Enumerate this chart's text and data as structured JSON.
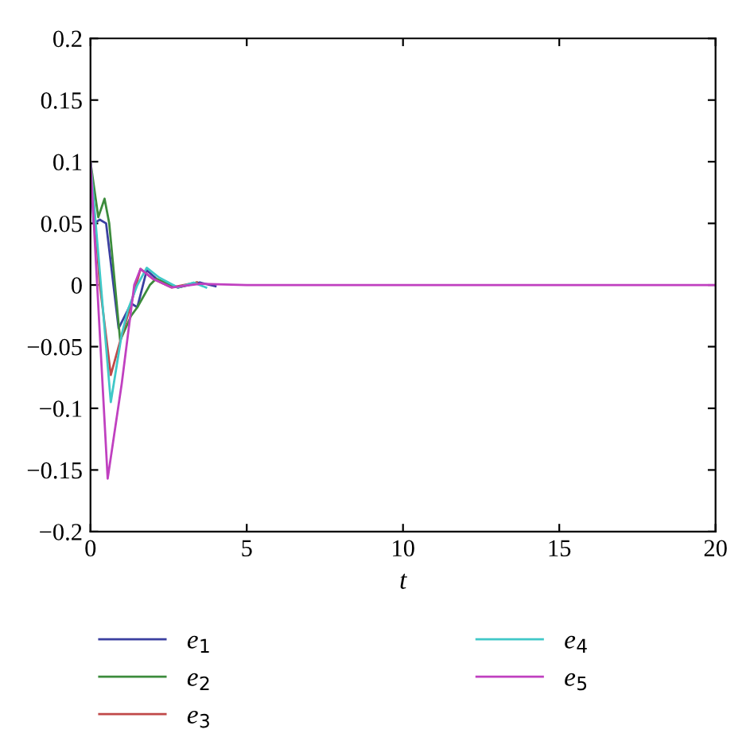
{
  "chart_data": {
    "type": "line",
    "xlabel": "t",
    "xlim": [
      0,
      20
    ],
    "ylim": [
      -0.2,
      0.2
    ],
    "xticks": [
      0,
      5,
      10,
      15,
      20
    ],
    "yticks": [
      {
        "value": -0.2,
        "label": "−0.2"
      },
      {
        "value": -0.15,
        "label": "−0.15"
      },
      {
        "value": -0.1,
        "label": "−0.1"
      },
      {
        "value": -0.05,
        "label": "−0.05"
      },
      0,
      0.05,
      0.1,
      0.15,
      0.2
    ],
    "grid": false,
    "legend": "bottom",
    "marker": "none",
    "line_style": "solid",
    "series": [
      {
        "name": "e$_{1}$",
        "color": "#3a3fa0",
        "x": [
          0,
          0.1,
          0.3,
          0.5,
          0.9,
          1.3,
          1.5,
          1.8,
          2.2,
          2.8,
          3.5,
          4
        ],
        "values": [
          0.1,
          0.05,
          0.053,
          0.05,
          -0.035,
          -0.015,
          -0.018,
          0.012,
          0.003,
          -0.002,
          0.002,
          -0.001
        ]
      },
      {
        "name": "e$_{2}$",
        "color": "#3c8c3c",
        "x": [
          0,
          0.25,
          0.45,
          0.6,
          0.95,
          1.3,
          1.5,
          1.9,
          2.1,
          2.8,
          3.4
        ],
        "values": [
          0.1,
          0.055,
          0.07,
          0.05,
          -0.045,
          -0.025,
          -0.018,
          0.0,
          0.005,
          -0.002,
          0.002
        ]
      },
      {
        "name": "e$_{3}$",
        "color": "#c04848",
        "x": [
          0,
          0.3,
          0.65,
          0.9,
          1.3,
          1.6,
          2.0,
          2.6,
          3.4
        ],
        "values": [
          0.1,
          0.0,
          -0.073,
          -0.05,
          -0.015,
          0.013,
          0.005,
          -0.002,
          0.002
        ]
      },
      {
        "name": "e$_{4}$",
        "color": "#40c8c8",
        "x": [
          0,
          0.65,
          1.0,
          1.2,
          1.5,
          1.8,
          2.2,
          2.8,
          3.3,
          3.7
        ],
        "values": [
          0.1,
          -0.095,
          -0.04,
          -0.02,
          0.0,
          0.014,
          0.006,
          -0.002,
          0.002,
          -0.002
        ]
      },
      {
        "name": "e$_{5}$",
        "color": "#c040c0",
        "x": [
          0,
          0.55,
          1.0,
          1.4,
          1.6,
          2.0,
          2.6,
          3.5,
          5,
          20
        ],
        "values": [
          0.1,
          -0.157,
          -0.08,
          0.0,
          0.013,
          0.005,
          -0.002,
          0.001,
          0,
          0
        ]
      }
    ]
  }
}
